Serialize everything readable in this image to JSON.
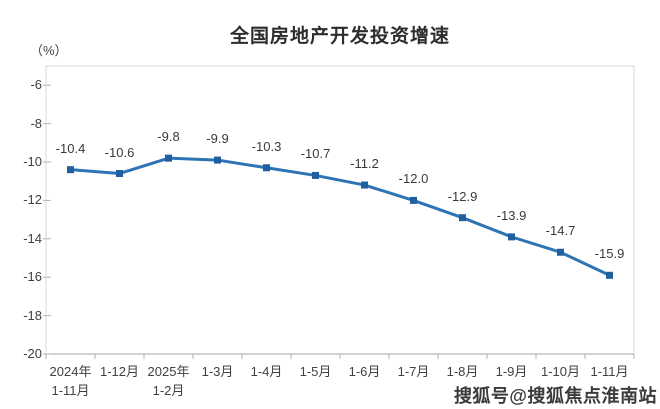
{
  "chart_data": {
    "type": "line",
    "title": "全国房地产开发投资增速",
    "unit_label": "（%）",
    "categories": [
      [
        "2024年",
        "1-11月"
      ],
      [
        "1-12月"
      ],
      [
        "2025年",
        "1-2月"
      ],
      [
        "1-3月"
      ],
      [
        "1-4月"
      ],
      [
        "1-5月"
      ],
      [
        "1-6月"
      ],
      [
        "1-7月"
      ],
      [
        "1-8月"
      ],
      [
        "1-9月"
      ],
      [
        "1-10月"
      ],
      [
        "1-11月"
      ]
    ],
    "values": [
      -10.4,
      -10.6,
      -9.8,
      -9.9,
      -10.3,
      -10.7,
      -11.2,
      -12.0,
      -12.9,
      -13.9,
      -14.7,
      -15.9
    ],
    "data_labels": [
      "-10.4",
      "-10.6",
      "-9.8",
      "-9.9",
      "-10.3",
      "-10.7",
      "-11.2",
      "-12.0",
      "-12.9",
      "-13.9",
      "-14.7",
      "-15.9"
    ],
    "y_ticks": [
      -6,
      -8,
      -10,
      -12,
      -14,
      -16,
      -18,
      -20
    ],
    "y_tick_labels": [
      "-6",
      "-8",
      "-10",
      "-12",
      "-14",
      "-16",
      "-18",
      "-20"
    ],
    "ylim": [
      -20,
      -5
    ],
    "xlabel": "",
    "ylabel": "",
    "grid": false,
    "legend": false,
    "colors": {
      "line": "#2e74b5",
      "marker": "#1f5fa0",
      "plot_border": "#d9d9d9",
      "axis_line": "#a6a6a6",
      "tick_mark": "#b3b3b3"
    }
  },
  "watermark": {
    "text": "搜狐号@搜狐焦点淮南站"
  }
}
